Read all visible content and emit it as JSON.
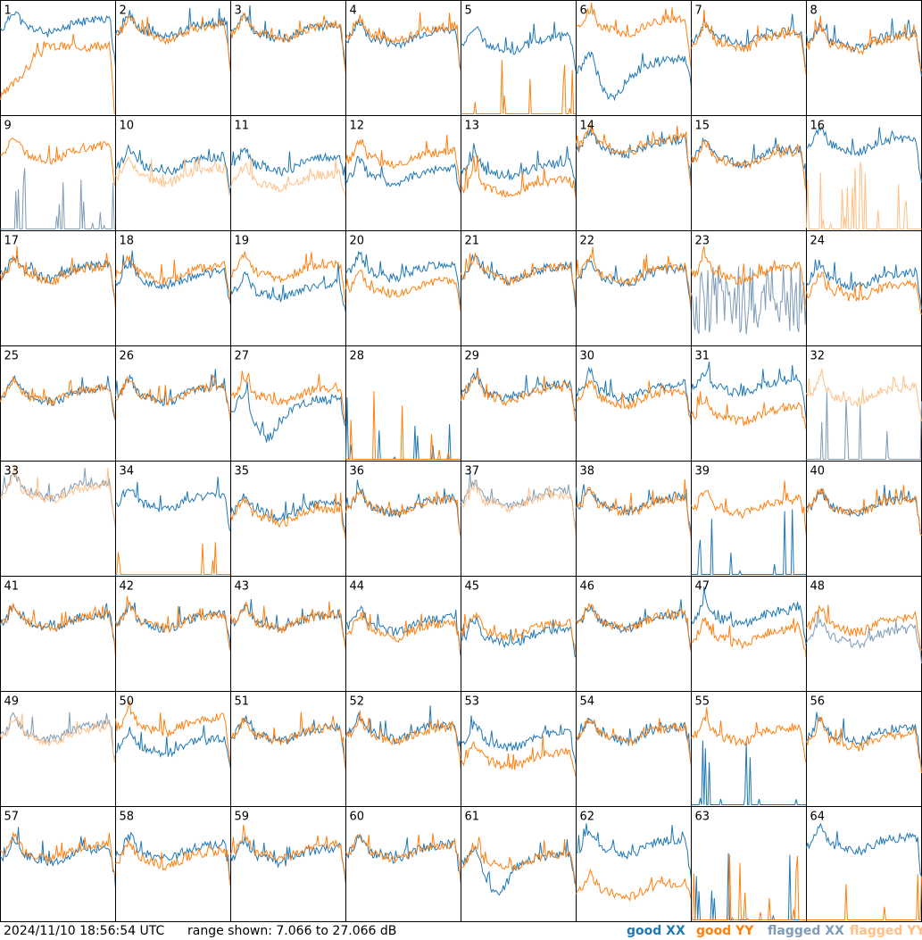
{
  "timestamp": "2024/11/10 18:56:54 UTC",
  "range_prefix": "range shown:",
  "range_text": "7.066 to 27.066 dB",
  "chart_data": {
    "type": "line",
    "layout": "8x8 small multiples",
    "ylim_db": [
      7.066,
      27.066
    ],
    "legend": [
      {
        "key": "good_xx",
        "prefix": "good",
        "suffix": "XX",
        "color": "#1f77b4"
      },
      {
        "key": "good_yy",
        "prefix": "good",
        "suffix": "YY",
        "color": "#ff7f0e"
      },
      {
        "key": "flagged_xx",
        "prefix": "flagged",
        "suffix": "XX",
        "color": "#7f9cb8"
      },
      {
        "key": "flagged_yy",
        "prefix": "flagged",
        "suffix": "YY",
        "color": "#ffbf86"
      }
    ],
    "panels": [
      {
        "label": "1",
        "xx": "good",
        "yy": "good",
        "xx_level": 0.75,
        "yy_level": 0.15,
        "shape": "dip"
      },
      {
        "label": "2",
        "xx": "good",
        "yy": "good",
        "xx_level": 0.72,
        "yy_level": 0.7,
        "shape": "normal"
      },
      {
        "label": "3",
        "xx": "good",
        "yy": "good",
        "xx_level": 0.7,
        "yy_level": 0.7,
        "shape": "normal"
      },
      {
        "label": "4",
        "xx": "good",
        "yy": "good",
        "xx_level": 0.65,
        "yy_level": 0.68,
        "shape": "normal"
      },
      {
        "label": "5",
        "xx": "good",
        "yy": "good",
        "xx_level": 0.6,
        "yy_level": 0.0,
        "shape": "yy_dead"
      },
      {
        "label": "6",
        "xx": "good",
        "yy": "good",
        "xx_level": 0.4,
        "yy_level": 0.75,
        "shape": "xx_dip"
      },
      {
        "label": "7",
        "xx": "good",
        "yy": "good",
        "xx_level": 0.65,
        "yy_level": 0.62,
        "shape": "normal"
      },
      {
        "label": "8",
        "xx": "good",
        "yy": "good",
        "xx_level": 0.62,
        "yy_level": 0.6,
        "shape": "normal"
      },
      {
        "label": "9",
        "xx": "flagged",
        "yy": "good",
        "xx_level": 0.0,
        "yy_level": 0.65,
        "shape": "xx_dead"
      },
      {
        "label": "10",
        "xx": "good",
        "yy": "flagged",
        "xx_level": 0.55,
        "yy_level": 0.45,
        "shape": "normal"
      },
      {
        "label": "11",
        "xx": "good",
        "yy": "flagged",
        "xx_level": 0.55,
        "yy_level": 0.4,
        "shape": "normal"
      },
      {
        "label": "12",
        "xx": "good",
        "yy": "good",
        "xx_level": 0.45,
        "yy_level": 0.6,
        "shape": "normal"
      },
      {
        "label": "13",
        "xx": "good",
        "yy": "good",
        "xx_level": 0.5,
        "yy_level": 0.35,
        "shape": "normal"
      },
      {
        "label": "14",
        "xx": "good",
        "yy": "good",
        "xx_level": 0.7,
        "yy_level": 0.72,
        "shape": "normal"
      },
      {
        "label": "15",
        "xx": "good",
        "yy": "good",
        "xx_level": 0.62,
        "yy_level": 0.6,
        "shape": "normal"
      },
      {
        "label": "16",
        "xx": "good",
        "yy": "flagged",
        "xx_level": 0.72,
        "yy_level": 0.0,
        "shape": "yy_dead"
      },
      {
        "label": "17",
        "xx": "good",
        "yy": "good",
        "xx_level": 0.62,
        "yy_level": 0.6,
        "shape": "normal"
      },
      {
        "label": "18",
        "xx": "good",
        "yy": "good",
        "xx_level": 0.55,
        "yy_level": 0.6,
        "shape": "normal"
      },
      {
        "label": "19",
        "xx": "good",
        "yy": "good",
        "xx_level": 0.45,
        "yy_level": 0.62,
        "shape": "normal"
      },
      {
        "label": "20",
        "xx": "good",
        "yy": "good",
        "xx_level": 0.62,
        "yy_level": 0.48,
        "shape": "normal"
      },
      {
        "label": "21",
        "xx": "good",
        "yy": "good",
        "xx_level": 0.6,
        "yy_level": 0.6,
        "shape": "normal"
      },
      {
        "label": "22",
        "xx": "good",
        "yy": "good",
        "xx_level": 0.58,
        "yy_level": 0.6,
        "shape": "normal"
      },
      {
        "label": "23",
        "xx": "flagged",
        "yy": "good",
        "xx_level": 0.2,
        "yy_level": 0.6,
        "shape": "xx_noisy"
      },
      {
        "label": "24",
        "xx": "good",
        "yy": "good",
        "xx_level": 0.55,
        "yy_level": 0.45,
        "shape": "normal"
      },
      {
        "label": "25",
        "xx": "good",
        "yy": "good",
        "xx_level": 0.55,
        "yy_level": 0.55,
        "shape": "normal"
      },
      {
        "label": "26",
        "xx": "good",
        "yy": "good",
        "xx_level": 0.55,
        "yy_level": 0.55,
        "shape": "normal"
      },
      {
        "label": "27",
        "xx": "good",
        "yy": "good",
        "xx_level": 0.45,
        "yy_level": 0.55,
        "shape": "xx_dip"
      },
      {
        "label": "28",
        "xx": "good",
        "yy": "good",
        "xx_level": 0.0,
        "yy_level": 0.0,
        "shape": "dead"
      },
      {
        "label": "29",
        "xx": "good",
        "yy": "good",
        "xx_level": 0.58,
        "yy_level": 0.55,
        "shape": "normal"
      },
      {
        "label": "30",
        "xx": "good",
        "yy": "good",
        "xx_level": 0.58,
        "yy_level": 0.52,
        "shape": "normal"
      },
      {
        "label": "31",
        "xx": "good",
        "yy": "good",
        "xx_level": 0.62,
        "yy_level": 0.38,
        "shape": "normal"
      },
      {
        "label": "32",
        "xx": "flagged",
        "yy": "flagged",
        "xx_level": 0.0,
        "yy_level": 0.55,
        "shape": "xx_dead"
      },
      {
        "label": "33",
        "xx": "flagged",
        "yy": "flagged",
        "xx_level": 0.72,
        "yy_level": 0.7,
        "shape": "normal"
      },
      {
        "label": "34",
        "xx": "good",
        "yy": "good",
        "xx_level": 0.62,
        "yy_level": 0.0,
        "shape": "yy_dead"
      },
      {
        "label": "35",
        "xx": "good",
        "yy": "good",
        "xx_level": 0.55,
        "yy_level": 0.5,
        "shape": "normal"
      },
      {
        "label": "36",
        "xx": "good",
        "yy": "good",
        "xx_level": 0.58,
        "yy_level": 0.58,
        "shape": "normal"
      },
      {
        "label": "37",
        "xx": "flagged",
        "yy": "flagged",
        "xx_level": 0.65,
        "yy_level": 0.62,
        "shape": "normal"
      },
      {
        "label": "38",
        "xx": "good",
        "yy": "good",
        "xx_level": 0.6,
        "yy_level": 0.58,
        "shape": "normal"
      },
      {
        "label": "39",
        "xx": "good",
        "yy": "good",
        "xx_level": 0.0,
        "yy_level": 0.58,
        "shape": "xx_dead"
      },
      {
        "label": "40",
        "xx": "good",
        "yy": "good",
        "xx_level": 0.58,
        "yy_level": 0.58,
        "shape": "normal"
      },
      {
        "label": "41",
        "xx": "good",
        "yy": "good",
        "xx_level": 0.58,
        "yy_level": 0.58,
        "shape": "normal"
      },
      {
        "label": "42",
        "xx": "good",
        "yy": "good",
        "xx_level": 0.58,
        "yy_level": 0.58,
        "shape": "normal"
      },
      {
        "label": "43",
        "xx": "good",
        "yy": "good",
        "xx_level": 0.58,
        "yy_level": 0.58,
        "shape": "normal"
      },
      {
        "label": "44",
        "xx": "good",
        "yy": "good",
        "xx_level": 0.55,
        "yy_level": 0.5,
        "shape": "normal"
      },
      {
        "label": "45",
        "xx": "good",
        "yy": "good",
        "xx_level": 0.45,
        "yy_level": 0.5,
        "shape": "normal"
      },
      {
        "label": "46",
        "xx": "good",
        "yy": "good",
        "xx_level": 0.58,
        "yy_level": 0.58,
        "shape": "normal"
      },
      {
        "label": "47",
        "xx": "good",
        "yy": "good",
        "xx_level": 0.62,
        "yy_level": 0.45,
        "shape": "normal"
      },
      {
        "label": "48",
        "xx": "flagged",
        "yy": "good",
        "xx_level": 0.45,
        "yy_level": 0.55,
        "shape": "normal"
      },
      {
        "label": "49",
        "xx": "flagged",
        "yy": "flagged",
        "xx_level": 0.62,
        "yy_level": 0.6,
        "shape": "normal"
      },
      {
        "label": "50",
        "xx": "good",
        "yy": "good",
        "xx_level": 0.5,
        "yy_level": 0.68,
        "shape": "normal"
      },
      {
        "label": "51",
        "xx": "good",
        "yy": "good",
        "xx_level": 0.6,
        "yy_level": 0.6,
        "shape": "normal"
      },
      {
        "label": "52",
        "xx": "good",
        "yy": "good",
        "xx_level": 0.62,
        "yy_level": 0.6,
        "shape": "normal"
      },
      {
        "label": "53",
        "xx": "good",
        "yy": "good",
        "xx_level": 0.55,
        "yy_level": 0.38,
        "shape": "normal"
      },
      {
        "label": "54",
        "xx": "good",
        "yy": "good",
        "xx_level": 0.6,
        "yy_level": 0.6,
        "shape": "normal"
      },
      {
        "label": "55",
        "xx": "good",
        "yy": "good",
        "xx_level": 0.1,
        "yy_level": 0.6,
        "shape": "xx_dead"
      },
      {
        "label": "56",
        "xx": "good",
        "yy": "good",
        "xx_level": 0.6,
        "yy_level": 0.55,
        "shape": "normal"
      },
      {
        "label": "57",
        "xx": "good",
        "yy": "good",
        "xx_level": 0.55,
        "yy_level": 0.58,
        "shape": "normal"
      },
      {
        "label": "58",
        "xx": "good",
        "yy": "good",
        "xx_level": 0.58,
        "yy_level": 0.52,
        "shape": "normal"
      },
      {
        "label": "59",
        "xx": "good",
        "yy": "good",
        "xx_level": 0.55,
        "yy_level": 0.58,
        "shape": "normal"
      },
      {
        "label": "60",
        "xx": "good",
        "yy": "good",
        "xx_level": 0.58,
        "yy_level": 0.58,
        "shape": "normal"
      },
      {
        "label": "61",
        "xx": "good",
        "yy": "good",
        "xx_level": 0.5,
        "yy_level": 0.5,
        "shape": "xx_dip"
      },
      {
        "label": "62",
        "xx": "good",
        "yy": "good",
        "xx_level": 0.62,
        "yy_level": 0.25,
        "shape": "normal"
      },
      {
        "label": "63",
        "xx": "good",
        "yy": "good",
        "xx_level": 0.0,
        "yy_level": 0.0,
        "shape": "dead"
      },
      {
        "label": "64",
        "xx": "good",
        "yy": "good",
        "xx_level": 0.65,
        "yy_level": 0.0,
        "shape": "yy_dead"
      }
    ]
  }
}
